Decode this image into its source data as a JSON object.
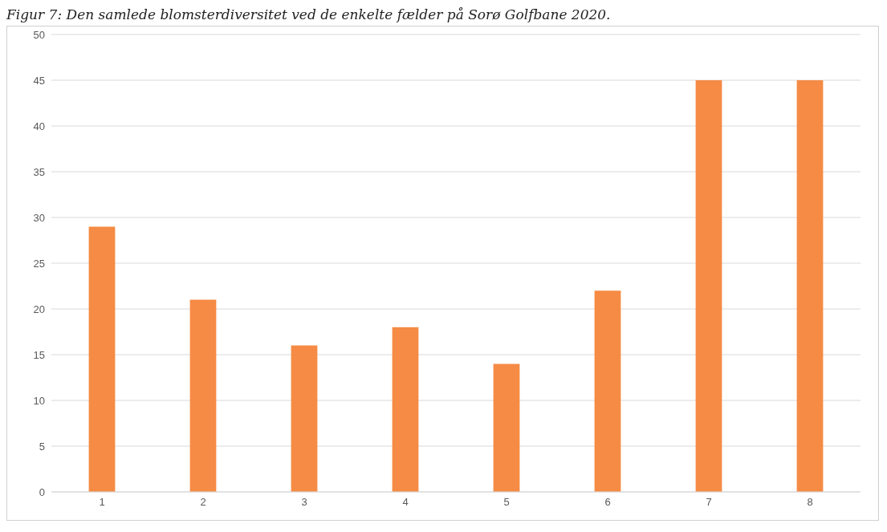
{
  "chart_data": {
    "type": "bar",
    "title": "Figur 7: Den samlede blomsterdiversitet ved de enkelte fælder på Sorø Golfbane 2020.",
    "categories": [
      "1",
      "2",
      "3",
      "4",
      "5",
      "6",
      "7",
      "8"
    ],
    "values": [
      29,
      21,
      16,
      18,
      14,
      22,
      45,
      45
    ],
    "color": "#f58b45",
    "ylim": [
      0,
      50
    ],
    "yticks": [
      0,
      5,
      10,
      15,
      20,
      25,
      30,
      35,
      40,
      45,
      50
    ],
    "grid": "y"
  }
}
